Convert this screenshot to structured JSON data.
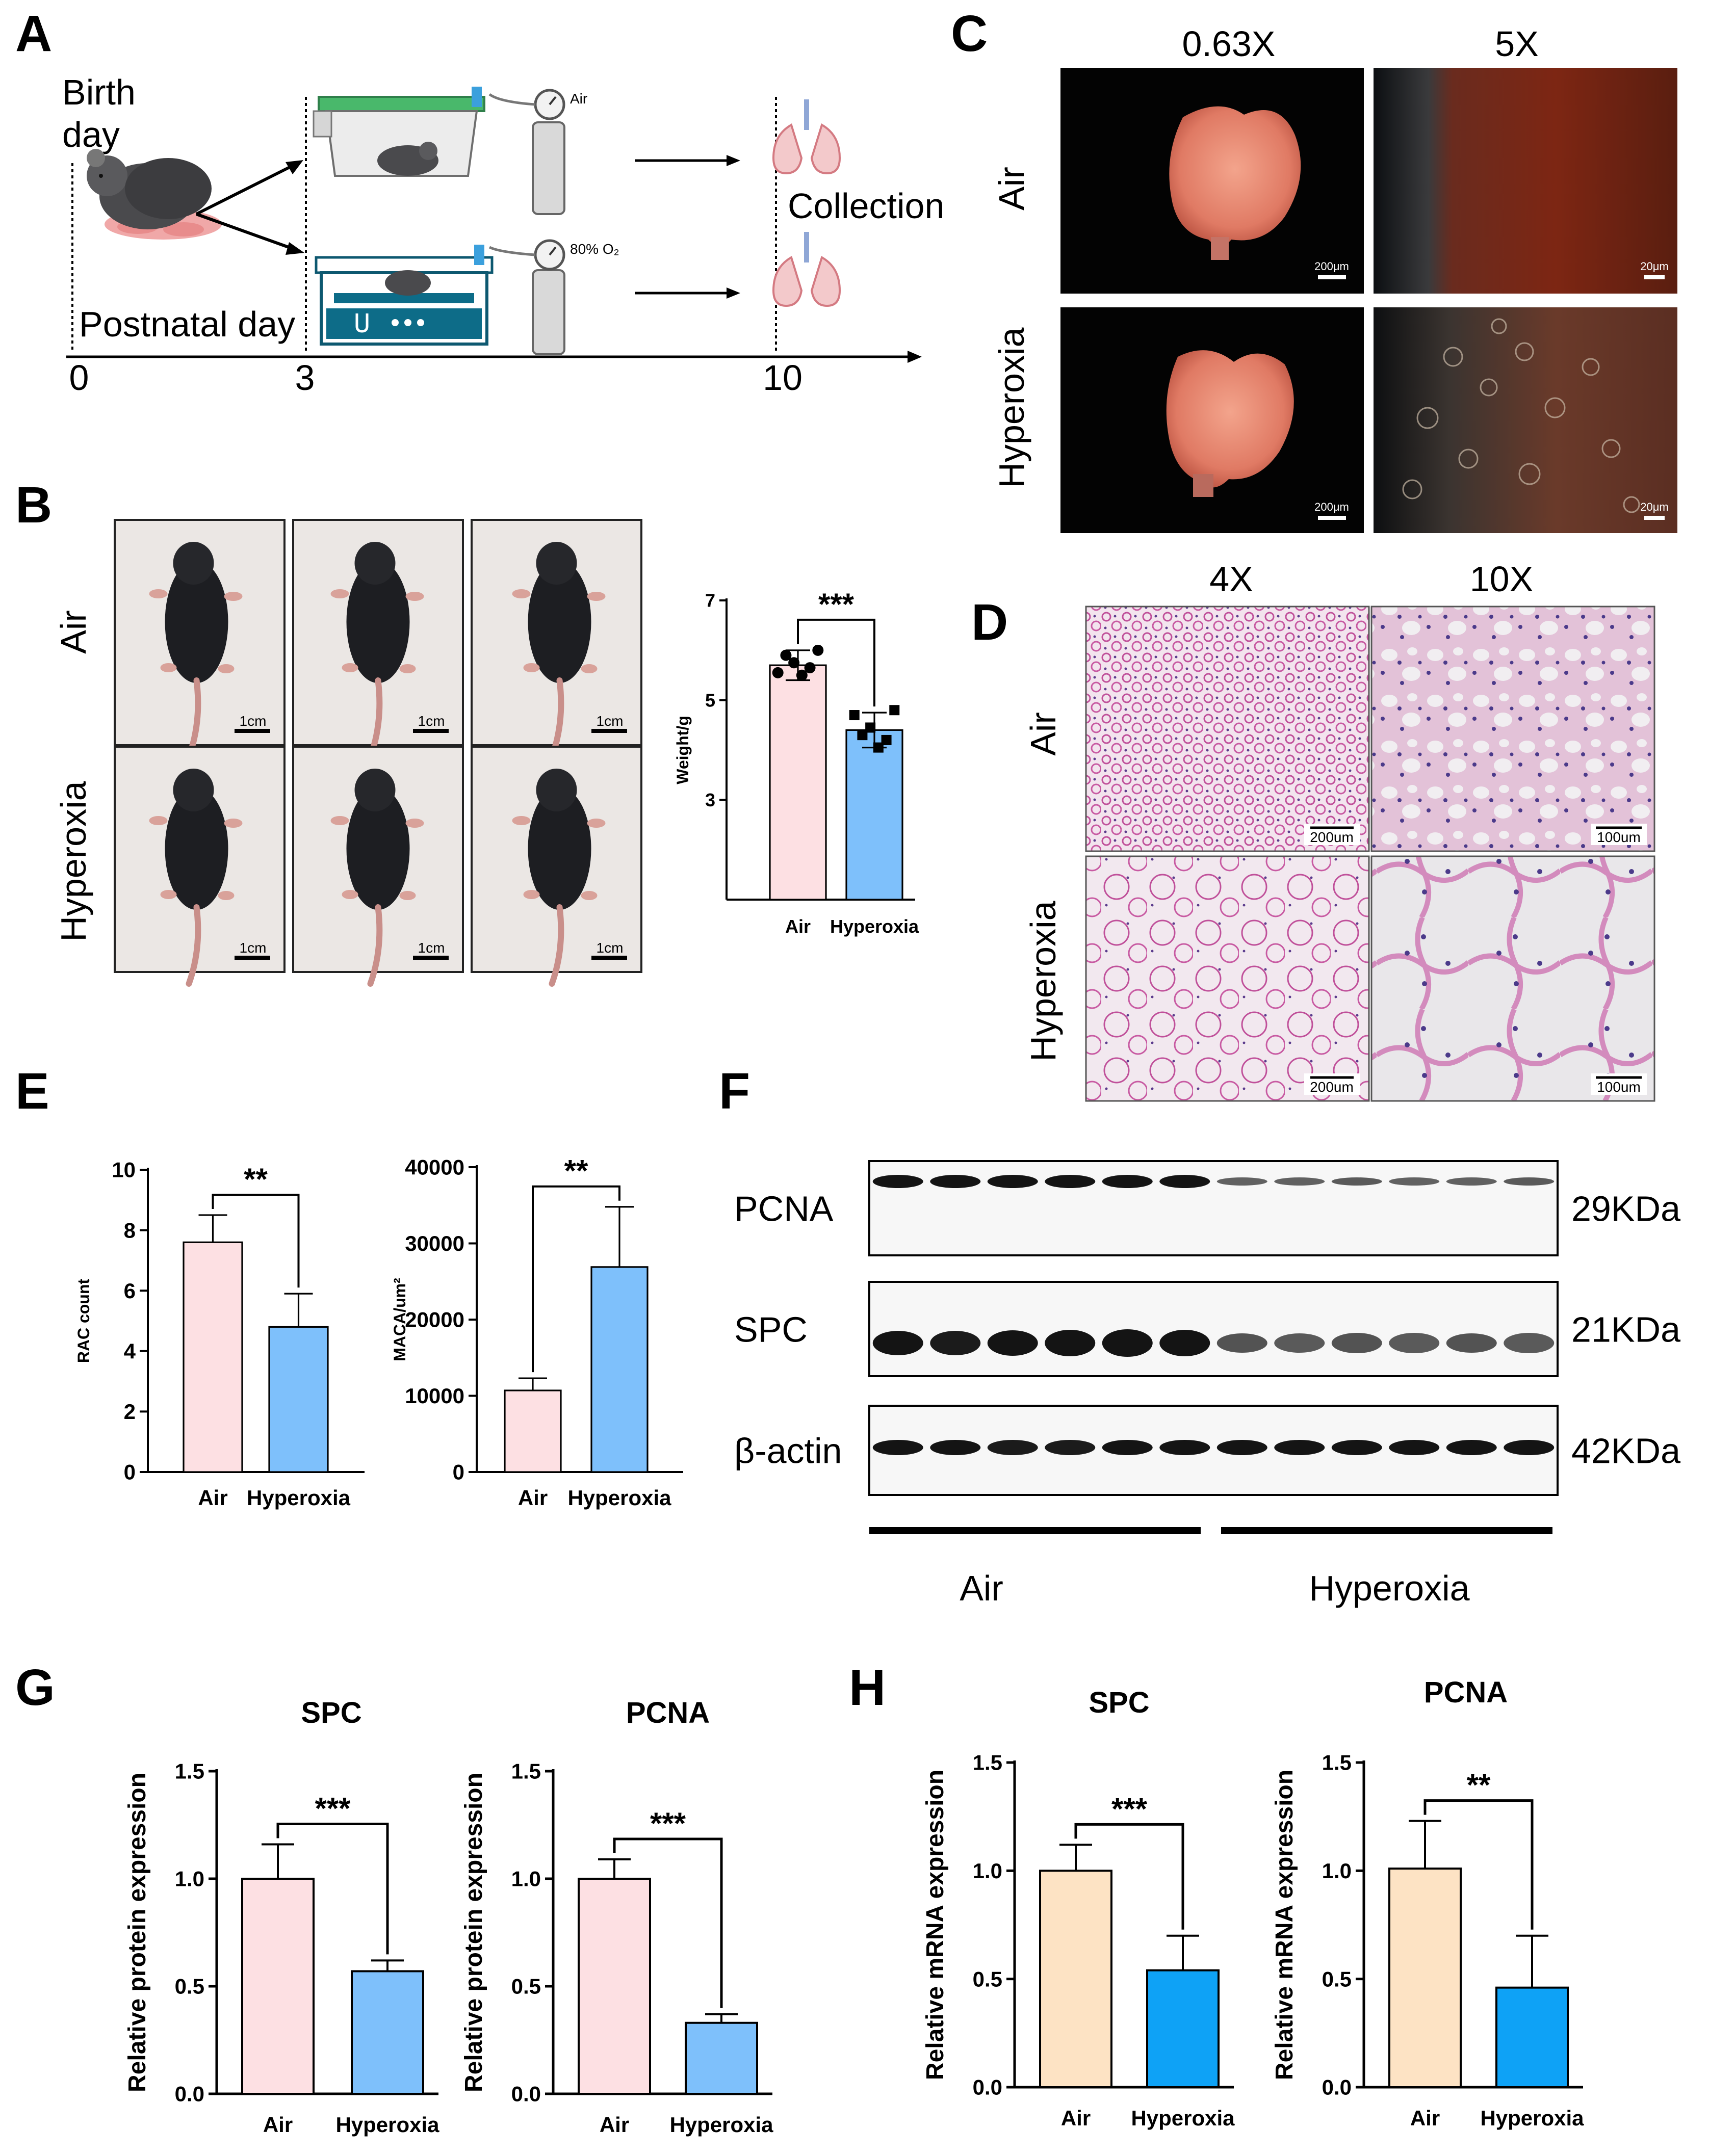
{
  "panels": {
    "A": "A",
    "B": "B",
    "C": "C",
    "D": "D",
    "E": "E",
    "F": "F",
    "G": "G",
    "H": "H"
  },
  "panel_a": {
    "birth_label_1": "Birth",
    "birth_label_2": "day",
    "postnatal_label": "Postnatal day",
    "collection_label": "Collection",
    "air_label": "Air",
    "oxygen_label": "80% O₂",
    "timeline_ticks": [
      "0",
      "3",
      "10"
    ]
  },
  "panel_b": {
    "row_labels": [
      "Air",
      "Hyperoxia"
    ],
    "scale_bar": "1cm",
    "chart_ylabel": "Weight/g",
    "chart_yticks": [
      "3",
      "5",
      "7"
    ],
    "chart_categories": [
      "Air",
      "Hyperoxia"
    ],
    "significance": "***"
  },
  "panel_c": {
    "col_labels": [
      "0.63X",
      "5X"
    ],
    "row_labels": [
      "Air",
      "Hyperoxia"
    ],
    "scale_bars": [
      "200μm",
      "20μm"
    ]
  },
  "panel_d": {
    "col_labels": [
      "4X",
      "10X"
    ],
    "row_labels": [
      "Air",
      "Hyperoxia"
    ],
    "scale_bars": [
      "200um",
      "100um"
    ]
  },
  "panel_f": {
    "bands": [
      {
        "name": "PCNA",
        "size": "29KDa"
      },
      {
        "name": "SPC",
        "size": "21KDa"
      },
      {
        "name": "β-actin",
        "size": "42KDa"
      }
    ],
    "group_labels": [
      "Air",
      "Hyperoxia"
    ]
  },
  "colors": {
    "air_fill": "#fde0e3",
    "hyperoxia_fill": "#7ec0fb",
    "air_fill_mrna": "#fde3c4",
    "hyperoxia_fill_mrna": "#0ea2f6"
  },
  "chart_data": [
    {
      "id": "B-weight",
      "type": "bar",
      "categories": [
        "Air",
        "Hyperoxia"
      ],
      "values": [
        5.7,
        4.4
      ],
      "errors": [
        0.3,
        0.35
      ],
      "points": [
        [
          5.55,
          5.9,
          5.75,
          5.5,
          5.65,
          6.0
        ],
        [
          4.7,
          4.3,
          4.45,
          4.05,
          4.2,
          4.8
        ]
      ],
      "xlabel": "",
      "ylabel": "Weight/g",
      "ylim": [
        1,
        7
      ],
      "yticks": [
        3,
        5,
        7
      ],
      "significance": "***",
      "title": ""
    },
    {
      "id": "E-rac",
      "type": "bar",
      "categories": [
        "Air",
        "Hyperoxia"
      ],
      "values": [
        7.6,
        4.8
      ],
      "errors": [
        0.9,
        1.1
      ],
      "xlabel": "",
      "ylabel": "RAC count",
      "ylim": [
        0,
        10
      ],
      "yticks": [
        0,
        2,
        4,
        6,
        8,
        10
      ],
      "significance": "**",
      "title": ""
    },
    {
      "id": "E-maca",
      "type": "bar",
      "categories": [
        "Air",
        "Hyperoxia"
      ],
      "values": [
        10700,
        26900
      ],
      "errors": [
        1600,
        7900
      ],
      "xlabel": "",
      "ylabel": "MACA/um²",
      "ylim": [
        0,
        40000
      ],
      "yticks": [
        0,
        10000,
        20000,
        30000,
        40000
      ],
      "significance": "**",
      "title": ""
    },
    {
      "id": "G-spc",
      "type": "bar",
      "categories": [
        "Air",
        "Hyperoxia"
      ],
      "values": [
        1.0,
        0.57
      ],
      "errors": [
        0.16,
        0.05
      ],
      "xlabel": "",
      "ylabel": "Relative protein expression",
      "ylim": [
        0,
        1.5
      ],
      "yticks": [
        0.0,
        0.5,
        1.0,
        1.5
      ],
      "significance": "***",
      "title": "SPC"
    },
    {
      "id": "G-pcna",
      "type": "bar",
      "categories": [
        "Air",
        "Hyperoxia"
      ],
      "values": [
        1.0,
        0.33
      ],
      "errors": [
        0.09,
        0.04
      ],
      "xlabel": "",
      "ylabel": "Relative protein expression",
      "ylim": [
        0,
        1.5
      ],
      "yticks": [
        0.0,
        0.5,
        1.0,
        1.5
      ],
      "significance": "***",
      "title": "PCNA"
    },
    {
      "id": "H-spc",
      "type": "bar",
      "categories": [
        "Air",
        "Hyperoxia"
      ],
      "values": [
        1.0,
        0.54
      ],
      "errors": [
        0.12,
        0.16
      ],
      "xlabel": "",
      "ylabel": "Relative mRNA expression",
      "ylim": [
        0,
        1.5
      ],
      "yticks": [
        0.0,
        0.5,
        1.0,
        1.5
      ],
      "significance": "***",
      "title": "SPC"
    },
    {
      "id": "H-pcna",
      "type": "bar",
      "categories": [
        "Air",
        "Hyperoxia"
      ],
      "values": [
        1.01,
        0.46
      ],
      "errors": [
        0.22,
        0.24
      ],
      "xlabel": "",
      "ylabel": "Relative mRNA expression",
      "ylim": [
        0,
        1.5
      ],
      "yticks": [
        0.0,
        0.5,
        1.0,
        1.5
      ],
      "significance": "**",
      "title": "PCNA"
    }
  ]
}
